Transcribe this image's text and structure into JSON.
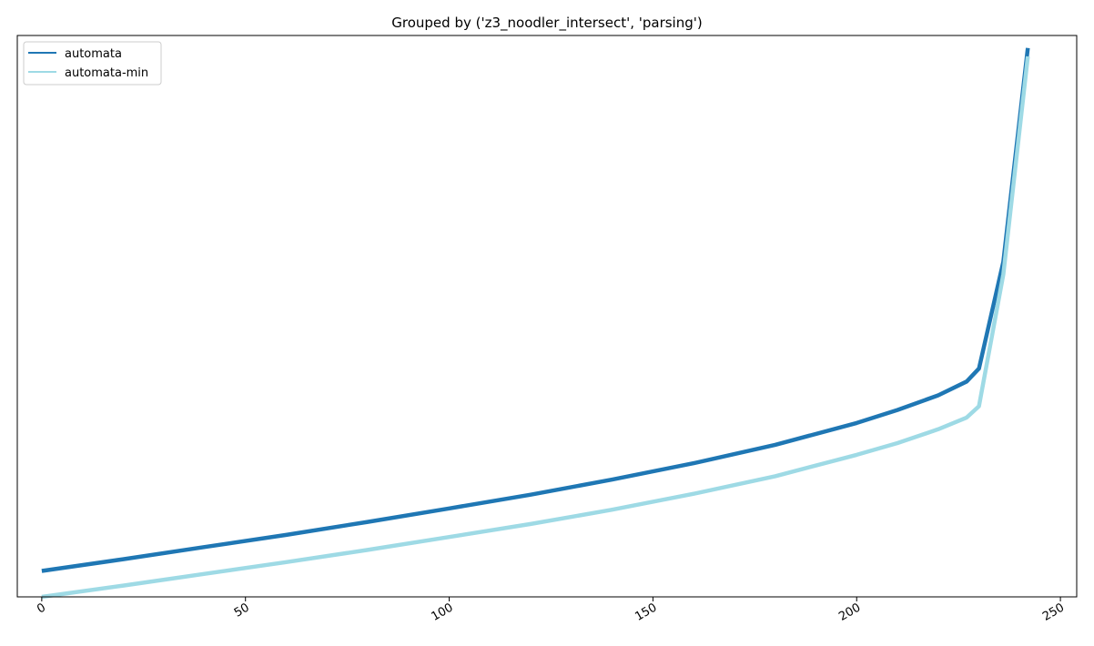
{
  "chart_data": {
    "type": "line",
    "title": "Grouped by ('z3_noodler_intersect', 'parsing')",
    "xlabel": "",
    "ylabel": "",
    "xlim": [
      -6,
      254
    ],
    "ylim": [
      -5,
      129
    ],
    "x_ticks": [
      0,
      50,
      100,
      150,
      200,
      250
    ],
    "x_tick_labels": [
      "0",
      "50",
      "100",
      "150",
      "200",
      "250"
    ],
    "y_ticks_visible": false,
    "grid": false,
    "legend_position": "top-left",
    "series": [
      {
        "name": "automata",
        "color": "#1f77b4",
        "x": [
          0,
          20,
          40,
          60,
          80,
          100,
          120,
          140,
          160,
          180,
          200,
          210,
          220,
          227,
          230,
          236,
          242
        ],
        "y": [
          1.2,
          4.0,
          6.9,
          9.8,
          12.9,
          16.1,
          19.4,
          23.0,
          26.9,
          31.3,
          36.5,
          39.6,
          43.1,
          46.4,
          49.5,
          75.0,
          126.0
        ]
      },
      {
        "name": "automata-min",
        "color": "#9edae5",
        "x": [
          0,
          20,
          40,
          60,
          80,
          100,
          120,
          140,
          160,
          180,
          200,
          210,
          220,
          227,
          230,
          236,
          242
        ],
        "y": [
          -5.0,
          -2.3,
          0.5,
          3.3,
          6.2,
          9.3,
          12.4,
          15.8,
          19.6,
          23.8,
          28.9,
          31.7,
          35.0,
          37.8,
          40.5,
          72.0,
          124.0
        ]
      }
    ]
  }
}
